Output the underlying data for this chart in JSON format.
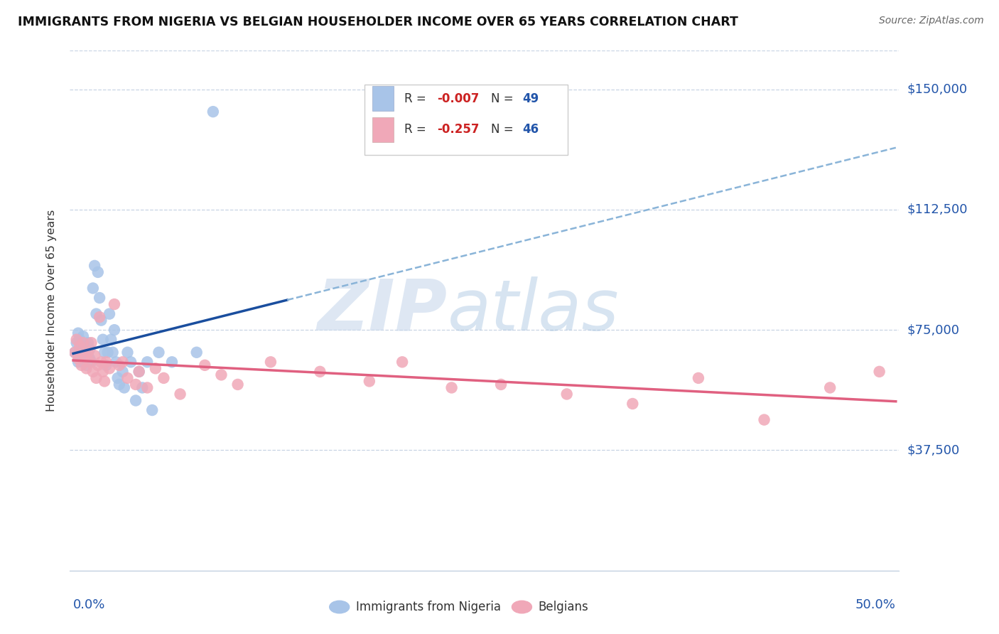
{
  "title": "IMMIGRANTS FROM NIGERIA VS BELGIAN HOUSEHOLDER INCOME OVER 65 YEARS CORRELATION CHART",
  "source": "Source: ZipAtlas.com",
  "ylabel": "Householder Income Over 65 years",
  "ylim": [
    0,
    162000
  ],
  "xlim": [
    -0.002,
    0.502
  ],
  "ytick_vals": [
    37500,
    75000,
    112500,
    150000
  ],
  "ytick_labels": [
    "$37,500",
    "$75,000",
    "$112,500",
    "$150,000"
  ],
  "blue_color": "#a8c4e8",
  "pink_color": "#f0a8b8",
  "blue_line_color": "#1a4e9e",
  "pink_line_color": "#e06080",
  "blue_dash_color": "#8ab4d8",
  "watermark_zip": "ZIP",
  "watermark_atlas": "atlas",
  "nigeria_x": [
    0.001,
    0.002,
    0.003,
    0.003,
    0.004,
    0.004,
    0.005,
    0.005,
    0.006,
    0.006,
    0.007,
    0.007,
    0.008,
    0.008,
    0.009,
    0.009,
    0.01,
    0.01,
    0.011,
    0.012,
    0.013,
    0.014,
    0.015,
    0.016,
    0.017,
    0.018,
    0.019,
    0.02,
    0.021,
    0.022,
    0.023,
    0.024,
    0.025,
    0.026,
    0.027,
    0.028,
    0.03,
    0.031,
    0.033,
    0.035,
    0.038,
    0.04,
    0.042,
    0.045,
    0.048,
    0.052,
    0.06,
    0.075,
    0.085
  ],
  "nigeria_y": [
    68000,
    71000,
    65000,
    74000,
    69000,
    72000,
    67000,
    70000,
    65000,
    73000,
    68000,
    66000,
    70000,
    64000,
    71000,
    67000,
    69000,
    66000,
    65000,
    88000,
    95000,
    80000,
    93000,
    85000,
    78000,
    72000,
    68000,
    64000,
    68000,
    80000,
    72000,
    68000,
    75000,
    65000,
    60000,
    58000,
    62000,
    57000,
    68000,
    65000,
    53000,
    62000,
    57000,
    65000,
    50000,
    68000,
    65000,
    68000,
    143000
  ],
  "belgians_x": [
    0.001,
    0.002,
    0.003,
    0.004,
    0.005,
    0.006,
    0.007,
    0.008,
    0.009,
    0.01,
    0.011,
    0.012,
    0.013,
    0.014,
    0.015,
    0.016,
    0.017,
    0.018,
    0.019,
    0.02,
    0.022,
    0.025,
    0.028,
    0.03,
    0.033,
    0.038,
    0.04,
    0.045,
    0.05,
    0.055,
    0.065,
    0.08,
    0.09,
    0.1,
    0.12,
    0.15,
    0.18,
    0.2,
    0.23,
    0.26,
    0.3,
    0.34,
    0.38,
    0.42,
    0.46,
    0.49
  ],
  "belgians_y": [
    68000,
    72000,
    66000,
    70000,
    64000,
    71000,
    67000,
    63000,
    68000,
    65000,
    71000,
    62000,
    67000,
    60000,
    64000,
    79000,
    65000,
    62000,
    59000,
    65000,
    63000,
    83000,
    64000,
    65000,
    60000,
    58000,
    62000,
    57000,
    63000,
    60000,
    55000,
    64000,
    61000,
    58000,
    65000,
    62000,
    59000,
    65000,
    57000,
    58000,
    55000,
    52000,
    60000,
    47000,
    57000,
    62000
  ]
}
